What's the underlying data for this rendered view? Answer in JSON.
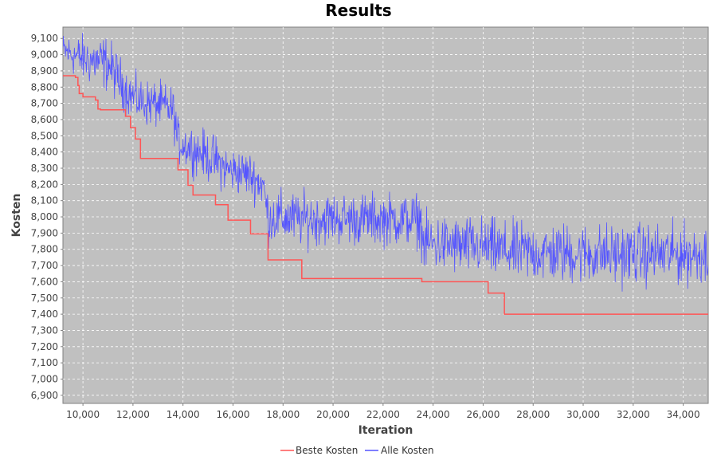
{
  "chart_data": {
    "type": "line",
    "title": "Results",
    "xlabel": "Iteration",
    "ylabel": "Kosten",
    "xlim": [
      9200,
      35000
    ],
    "ylim": [
      6850,
      9170
    ],
    "x_ticks": [
      "10,000",
      "12,000",
      "14,000",
      "16,000",
      "18,000",
      "20,000",
      "22,000",
      "24,000",
      "26,000",
      "28,000",
      "30,000",
      "32,000",
      "34,000"
    ],
    "x_tick_values": [
      10000,
      12000,
      14000,
      16000,
      18000,
      20000,
      22000,
      24000,
      26000,
      28000,
      30000,
      32000,
      34000
    ],
    "y_ticks": [
      "6,900",
      "7,000",
      "7,100",
      "7,200",
      "7,300",
      "7,400",
      "7,500",
      "7,600",
      "7,700",
      "7,800",
      "7,900",
      "8,000",
      "8,100",
      "8,200",
      "8,300",
      "8,400",
      "8,500",
      "8,600",
      "8,700",
      "8,800",
      "8,900",
      "9,000",
      "9,100"
    ],
    "y_tick_values": [
      6900,
      7000,
      7100,
      7200,
      7300,
      7400,
      7500,
      7600,
      7700,
      7800,
      7900,
      8000,
      8100,
      8200,
      8300,
      8400,
      8500,
      8600,
      8700,
      8800,
      8900,
      9000,
      9100
    ],
    "grid": true,
    "legend_position": "bottom",
    "plot_background": "#c0c0c0",
    "series": [
      {
        "name": "Beste Kosten",
        "color": "#ff5555",
        "style": "step",
        "points": [
          [
            9200,
            8870
          ],
          [
            9700,
            8860
          ],
          [
            9800,
            8810
          ],
          [
            9850,
            8760
          ],
          [
            10000,
            8740
          ],
          [
            10500,
            8720
          ],
          [
            10600,
            8665
          ],
          [
            10700,
            8660
          ],
          [
            11600,
            8660
          ],
          [
            11700,
            8620
          ],
          [
            11900,
            8550
          ],
          [
            12100,
            8480
          ],
          [
            12300,
            8360
          ],
          [
            13700,
            8360
          ],
          [
            13800,
            8290
          ],
          [
            14200,
            8195
          ],
          [
            14400,
            8135
          ],
          [
            15200,
            8135
          ],
          [
            15300,
            8075
          ],
          [
            15700,
            8075
          ],
          [
            15800,
            7980
          ],
          [
            16600,
            7980
          ],
          [
            16700,
            7895
          ],
          [
            17300,
            7895
          ],
          [
            17400,
            7735
          ],
          [
            18700,
            7735
          ],
          [
            18750,
            7620
          ],
          [
            23500,
            7620
          ],
          [
            23550,
            7600
          ],
          [
            26100,
            7600
          ],
          [
            26200,
            7530
          ],
          [
            26800,
            7530
          ],
          [
            26850,
            7400
          ],
          [
            35000,
            7400
          ]
        ]
      },
      {
        "name": "Alle Kosten",
        "color": "#5555ff",
        "style": "noisy-band",
        "band": [
          [
            9200,
            8880,
            9170
          ],
          [
            10000,
            8780,
            9170
          ],
          [
            11000,
            8720,
            9170
          ],
          [
            11800,
            8580,
            8950
          ],
          [
            12300,
            8520,
            8900
          ],
          [
            13000,
            8500,
            8880
          ],
          [
            13600,
            8470,
            8850
          ],
          [
            13800,
            8280,
            8650
          ],
          [
            14500,
            8220,
            8600
          ],
          [
            15200,
            8150,
            8560
          ],
          [
            15800,
            8100,
            8480
          ],
          [
            16600,
            8080,
            8450
          ],
          [
            17200,
            8000,
            8400
          ],
          [
            17400,
            7780,
            8220
          ],
          [
            18500,
            7760,
            8210
          ],
          [
            20000,
            7780,
            8200
          ],
          [
            22000,
            7770,
            8200
          ],
          [
            23500,
            7760,
            8200
          ],
          [
            23600,
            7600,
            8080
          ],
          [
            25000,
            7580,
            8060
          ],
          [
            26000,
            7570,
            8060
          ],
          [
            27000,
            7540,
            8030
          ],
          [
            30000,
            7520,
            8020
          ],
          [
            32000,
            7520,
            8020
          ],
          [
            35000,
            7520,
            8020
          ]
        ]
      }
    ]
  },
  "legend": {
    "items": [
      {
        "label": "Beste Kosten",
        "color": "#ff5555"
      },
      {
        "label": "Alle Kosten",
        "color": "#5555ff"
      }
    ]
  }
}
